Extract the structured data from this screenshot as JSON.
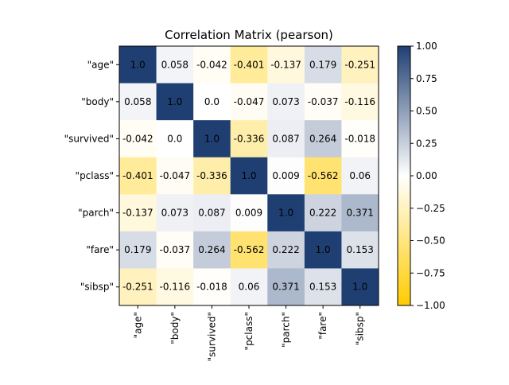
{
  "chart_data": {
    "type": "heatmap",
    "title": "Correlation Matrix (pearson)",
    "labels": [
      "\"age\"",
      "\"body\"",
      "\"survived\"",
      "\"pclass\"",
      "\"parch\"",
      "\"fare\"",
      "\"sibsp\""
    ],
    "matrix": [
      [
        1.0,
        0.058,
        -0.042,
        -0.401,
        -0.137,
        0.179,
        -0.251
      ],
      [
        0.058,
        1.0,
        0.0,
        -0.047,
        0.073,
        -0.037,
        -0.116
      ],
      [
        -0.042,
        0.0,
        1.0,
        -0.336,
        0.087,
        0.264,
        -0.018
      ],
      [
        -0.401,
        -0.047,
        -0.336,
        1.0,
        0.009,
        -0.562,
        0.06
      ],
      [
        -0.137,
        0.073,
        0.087,
        0.009,
        1.0,
        0.222,
        0.371
      ],
      [
        0.179,
        -0.037,
        0.264,
        -0.562,
        0.222,
        1.0,
        0.153
      ],
      [
        -0.251,
        -0.116,
        -0.018,
        0.06,
        0.371,
        0.153,
        1.0
      ]
    ],
    "cell_text": [
      [
        "1.0",
        "0.058",
        "-0.042",
        "-0.401",
        "-0.137",
        "0.179",
        "-0.251"
      ],
      [
        "0.058",
        "1.0",
        "0.0",
        "-0.047",
        "0.073",
        "-0.037",
        "-0.116"
      ],
      [
        "-0.042",
        "0.0",
        "1.0",
        "-0.336",
        "0.087",
        "0.264",
        "-0.018"
      ],
      [
        "-0.401",
        "-0.047",
        "-0.336",
        "1.0",
        "0.009",
        "-0.562",
        "0.06"
      ],
      [
        "-0.137",
        "0.073",
        "0.087",
        "0.009",
        "1.0",
        "0.222",
        "0.371"
      ],
      [
        "0.179",
        "-0.037",
        "0.264",
        "-0.562",
        "0.222",
        "1.0",
        "0.153"
      ],
      [
        "-0.251",
        "-0.116",
        "-0.018",
        "0.06",
        "0.371",
        "0.153",
        "1.0"
      ]
    ],
    "colorbar": {
      "range": [
        -1.0,
        1.0
      ],
      "ticks": [
        "1.00",
        "0.75",
        "0.50",
        "0.25",
        "0.00",
        "−0.25",
        "−0.50",
        "−0.75",
        "−1.00"
      ],
      "colors": {
        "low": "#ffcc00",
        "mid": "#ffffff",
        "high": "#1f3f73"
      }
    },
    "grid": false
  }
}
